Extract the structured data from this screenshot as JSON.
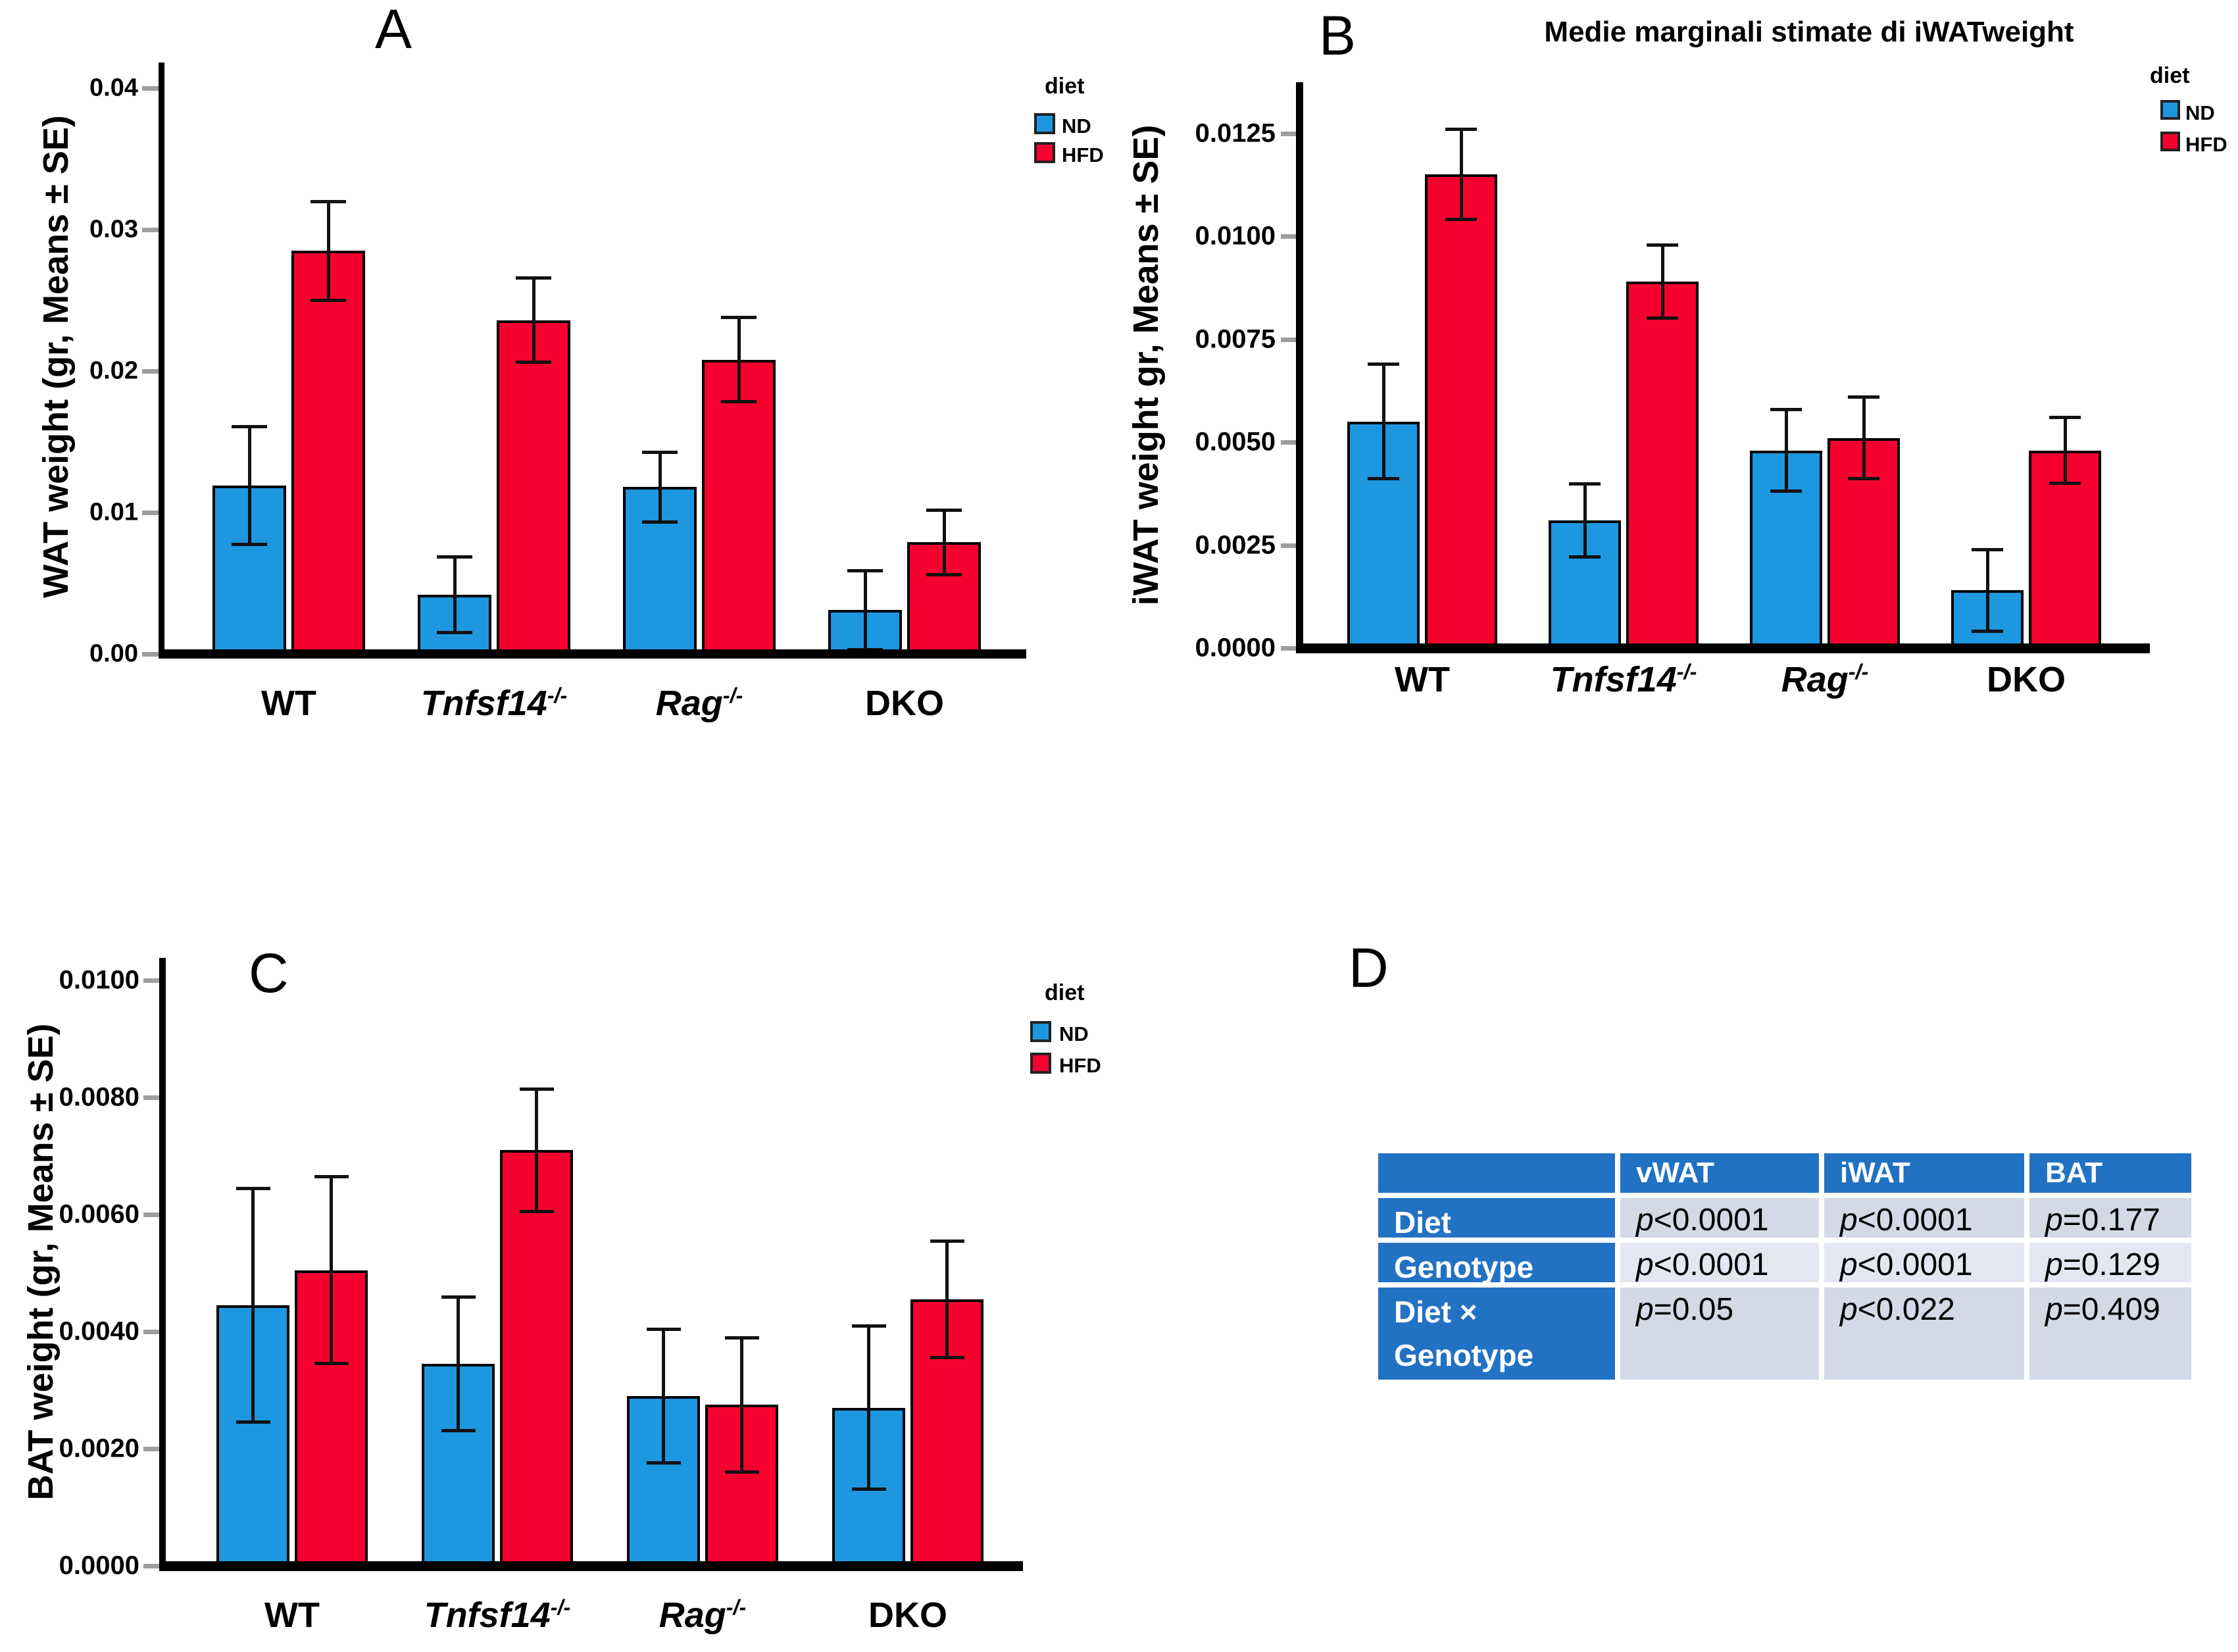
{
  "palette": {
    "nd_blue": "#1D97E0",
    "hfd_red": "#F6012F",
    "axis_black": "#000000",
    "tick_gray": "#9E9E9E",
    "table_header_blue": "#2272C4",
    "table_band_dark": "#D4D9E8",
    "table_band_light": "#E4E7F2"
  },
  "legend": {
    "title": "diet",
    "items": [
      {
        "label": "ND",
        "color_key": "nd_blue"
      },
      {
        "label": "HFD",
        "color_key": "hfd_red"
      }
    ]
  },
  "chart_data": [
    {
      "id": "A",
      "panel_letter": "A",
      "type": "bar",
      "title": "",
      "ylabel": "WAT weight (gr, Means ± SE)",
      "xlabel": "",
      "ylim": [
        0,
        0.0416
      ],
      "grid": false,
      "legend_position": "right-of-plot",
      "categories": [
        {
          "label": "WT",
          "sup": "",
          "italic": false
        },
        {
          "label": "Tnfsf14",
          "sup": "-/-",
          "italic": true
        },
        {
          "label": "Rag",
          "sup": "-/-",
          "italic": true
        },
        {
          "label": "DKO",
          "sup": "",
          "italic": false
        }
      ],
      "yticks": [
        {
          "v": 0.0,
          "label": "0.00"
        },
        {
          "v": 0.01,
          "label": "0.01"
        },
        {
          "v": 0.02,
          "label": "0.02"
        },
        {
          "v": 0.03,
          "label": "0.03"
        },
        {
          "v": 0.04,
          "label": "0.04"
        }
      ],
      "series": [
        {
          "name": "ND",
          "color_key": "nd_blue",
          "values": [
            0.0119,
            0.0042,
            0.0118,
            0.0031
          ],
          "errors": [
            0.0042,
            0.0027,
            0.0025,
            0.0028
          ]
        },
        {
          "name": "HFD",
          "color_key": "hfd_red",
          "values": [
            0.0285,
            0.0236,
            0.0208,
            0.0079
          ],
          "errors": [
            0.0035,
            0.003,
            0.003,
            0.0023
          ]
        }
      ]
    },
    {
      "id": "B",
      "panel_letter": "B",
      "type": "bar",
      "title": "Medie marginali stimate di iWATweight",
      "ylabel": "iWAT weight gr, Means ± SE)",
      "xlabel": "",
      "ylim": [
        0,
        0.0138
      ],
      "grid": false,
      "legend_position": "right-of-plot",
      "categories": [
        {
          "label": "WT",
          "sup": "",
          "italic": false
        },
        {
          "label": "Tnfsf14",
          "sup": "-/-",
          "italic": true
        },
        {
          "label": "Rag",
          "sup": "-/-",
          "italic": true
        },
        {
          "label": "DKO",
          "sup": "",
          "italic": false
        }
      ],
      "yticks": [
        {
          "v": 0.0,
          "label": "0.0000"
        },
        {
          "v": 0.0025,
          "label": "0.0025"
        },
        {
          "v": 0.005,
          "label": "0.0050"
        },
        {
          "v": 0.0075,
          "label": "0.0075"
        },
        {
          "v": 0.01,
          "label": "0.0100"
        },
        {
          "v": 0.0125,
          "label": "0.0125"
        }
      ],
      "series": [
        {
          "name": "ND",
          "color_key": "nd_blue",
          "values": [
            0.0055,
            0.0031,
            0.0048,
            0.0014
          ],
          "errors": [
            0.0014,
            0.0009,
            0.001,
            0.001
          ]
        },
        {
          "name": "HFD",
          "color_key": "hfd_red",
          "values": [
            0.0115,
            0.0089,
            0.0051,
            0.0048
          ],
          "errors": [
            0.0011,
            0.0009,
            0.001,
            0.0008
          ]
        }
      ]
    },
    {
      "id": "C",
      "panel_letter": "C",
      "type": "bar",
      "title": "",
      "ylabel": "BAT weight (gr, Means ± SE)",
      "xlabel": "",
      "ylim": [
        0,
        0.01035
      ],
      "grid": false,
      "legend_position": "right-of-plot",
      "categories": [
        {
          "label": "WT",
          "sup": "",
          "italic": false
        },
        {
          "label": "Tnfsf14",
          "sup": "-/-",
          "italic": true
        },
        {
          "label": "Rag",
          "sup": "-/-",
          "italic": true
        },
        {
          "label": "DKO",
          "sup": "",
          "italic": false
        }
      ],
      "yticks": [
        {
          "v": 0.0,
          "label": "0.0000"
        },
        {
          "v": 0.002,
          "label": "0.0020"
        },
        {
          "v": 0.004,
          "label": "0.0040"
        },
        {
          "v": 0.006,
          "label": "0.0060"
        },
        {
          "v": 0.008,
          "label": "0.0080"
        },
        {
          "v": 0.01,
          "label": "0.0100"
        }
      ],
      "series": [
        {
          "name": "ND",
          "color_key": "nd_blue",
          "values": [
            0.00445,
            0.00345,
            0.0029,
            0.0027
          ],
          "errors": [
            0.002,
            0.00115,
            0.00115,
            0.0014
          ]
        },
        {
          "name": "HFD",
          "color_key": "hfd_red",
          "values": [
            0.00505,
            0.0071,
            0.00275,
            0.00455
          ],
          "errors": [
            0.0016,
            0.00105,
            0.00115,
            0.001
          ]
        }
      ]
    },
    {
      "id": "D",
      "panel_letter": "D",
      "type": "table",
      "columns": [
        "",
        "vWAT",
        "iWAT",
        "BAT"
      ],
      "rows": [
        {
          "label_lines": [
            "Diet"
          ],
          "values": [
            "p<0.0001",
            "p<0.0001",
            "p=0.177"
          ]
        },
        {
          "label_lines": [
            "Genotype"
          ],
          "values": [
            "p<0.0001",
            "p<0.0001",
            "p=0.129"
          ]
        },
        {
          "label_lines": [
            "Diet ×",
            "Genotype"
          ],
          "values": [
            "p=0.05",
            "p<0.022",
            "p=0.409"
          ]
        }
      ]
    }
  ]
}
